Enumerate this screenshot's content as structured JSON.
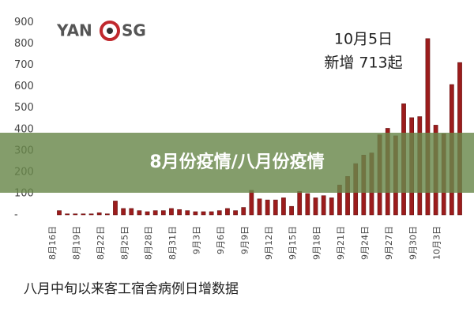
{
  "chart_data": {
    "type": "bar",
    "logo": [
      "YAN",
      "SG"
    ],
    "annotation": [
      "10月5日",
      "新增 713起"
    ],
    "banner": "8月份疫情/八月份疫情",
    "caption": "八月中旬以来客工宿舍病例日增数据",
    "color": "#9b1c1c",
    "categories": [
      "8月16日",
      null,
      null,
      "8月19日",
      null,
      null,
      "8月22日",
      null,
      null,
      "8月25日",
      null,
      null,
      "8月28日",
      null,
      null,
      "8月31日",
      null,
      null,
      "9月3日",
      null,
      null,
      "9月6日",
      null,
      null,
      "9月9日",
      null,
      null,
      "9月12日",
      null,
      null,
      "9月15日",
      null,
      null,
      "9月18日",
      null,
      null,
      "9月21日",
      null,
      null,
      "9月24日",
      null,
      null,
      "9月27日",
      null,
      null,
      "9月30日",
      null,
      null,
      "10月3日",
      null,
      null
    ],
    "values": [
      20,
      5,
      5,
      5,
      5,
      10,
      5,
      65,
      30,
      30,
      20,
      15,
      20,
      20,
      30,
      25,
      20,
      15,
      15,
      15,
      20,
      30,
      20,
      35,
      115,
      75,
      70,
      70,
      80,
      40,
      110,
      100,
      80,
      90,
      80,
      140,
      180,
      240,
      280,
      290,
      375,
      405,
      370,
      520,
      455,
      460,
      825,
      420,
      380,
      610,
      713
    ],
    "ylim": [
      0,
      950
    ],
    "yticks": [
      {
        "value": 0,
        "label": "-"
      },
      100,
      200,
      300,
      400,
      500,
      600,
      700,
      800,
      900
    ]
  }
}
